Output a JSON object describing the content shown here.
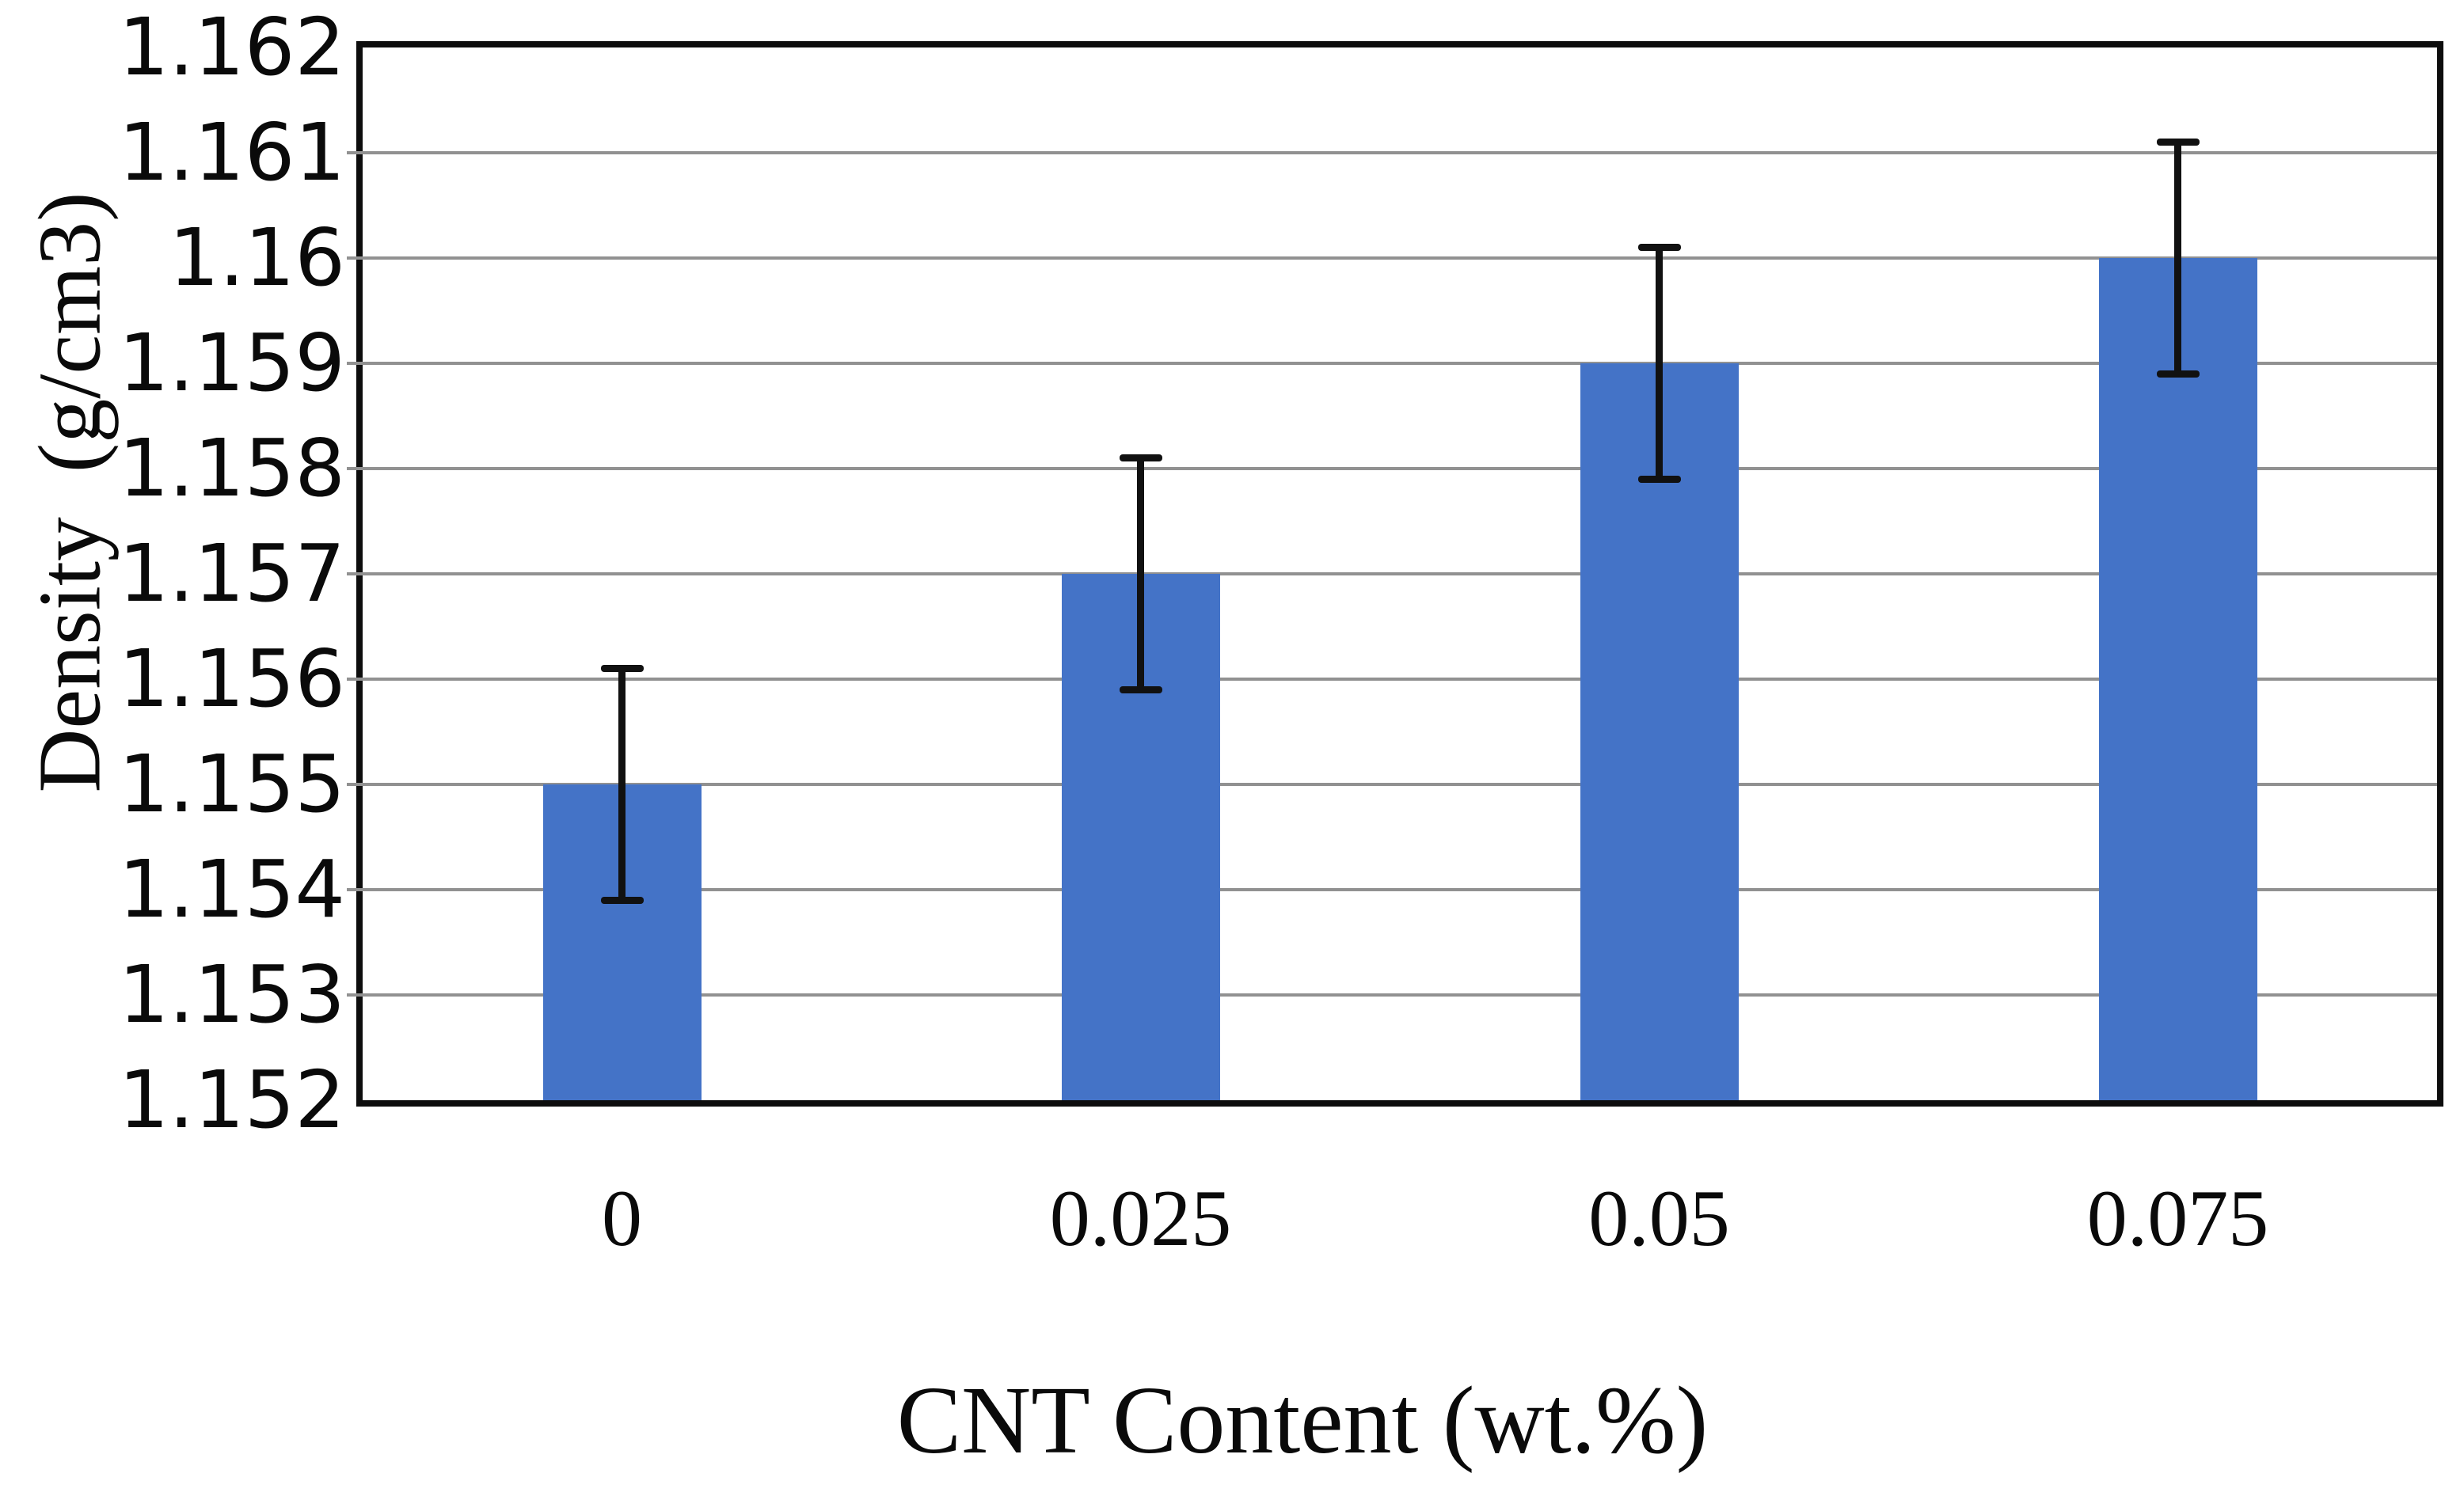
{
  "page": {
    "background": "#ffffff"
  },
  "chart_data": {
    "type": "bar",
    "title": "",
    "xlabel": "CNT Content (wt.%)",
    "ylabel": "Density  (g/cm3)",
    "categories": [
      "0",
      "0.025",
      "0.05",
      "0.075"
    ],
    "values": [
      1.155,
      1.157,
      1.159,
      1.16
    ],
    "error_plus": [
      0.0011,
      0.0011,
      0.0011,
      0.0011
    ],
    "error_minus": [
      0.0011,
      0.0011,
      0.0011,
      0.0011
    ],
    "ylim": [
      1.152,
      1.162
    ],
    "ytick_step": 0.001,
    "yticks": [
      "1.162",
      "1.161",
      "1.16",
      "1.159",
      "1.158",
      "1.157",
      "1.156",
      "1.155",
      "1.154",
      "1.153",
      "1.152"
    ],
    "grid": true,
    "legend": false,
    "bar_color": "#4473C7",
    "gridline_color": "#919191",
    "axis_color": "#0d0d0d",
    "text_color": "#0a0a0a",
    "error_bar_color": "#111111"
  }
}
